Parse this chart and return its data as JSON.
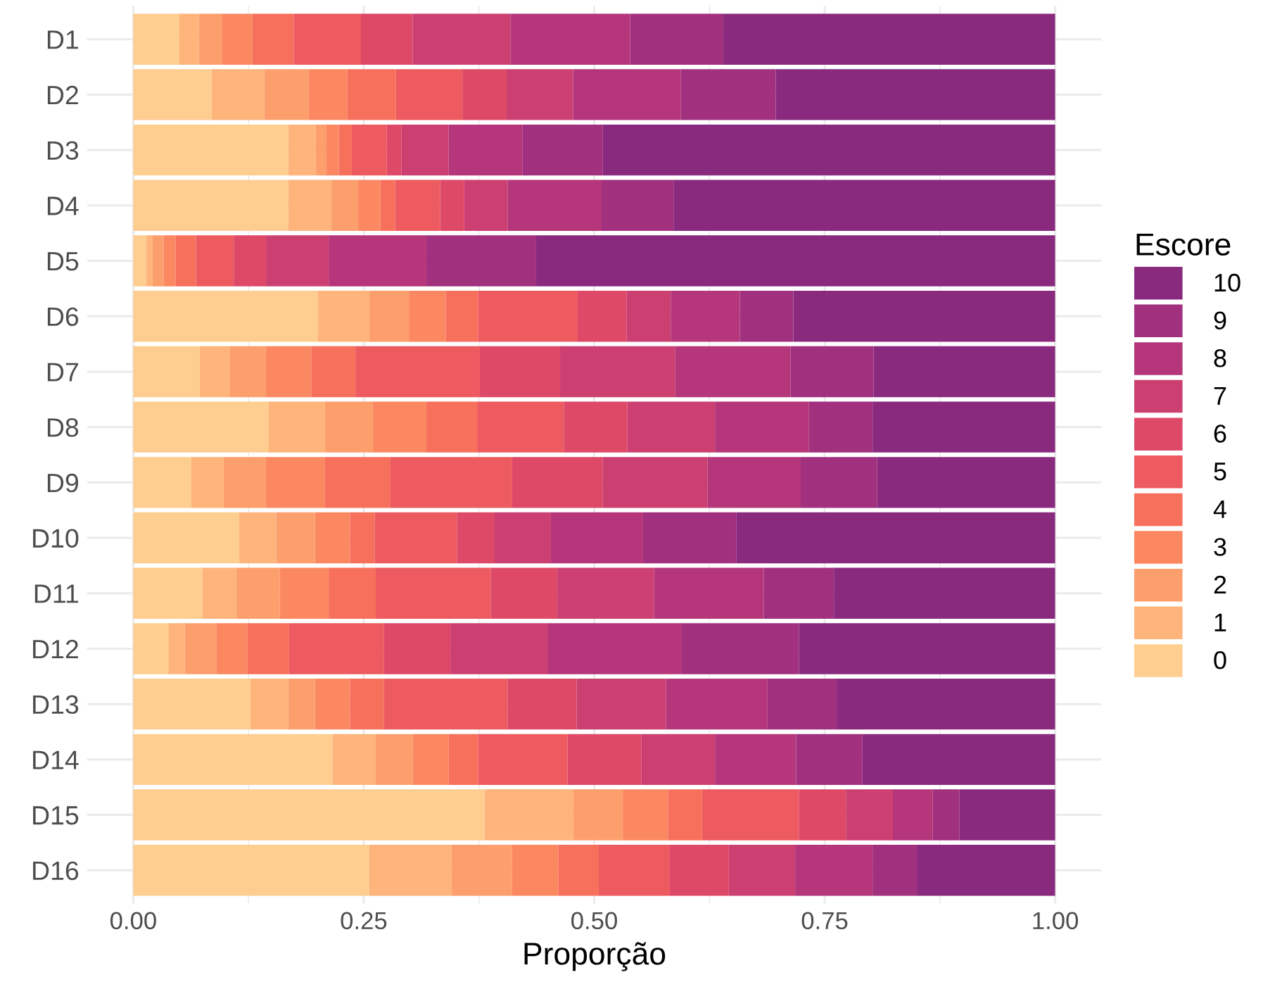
{
  "chart_data": {
    "type": "bar",
    "stacked": true,
    "orientation": "horizontal",
    "xlabel": "Proporção",
    "legend_title": "Escore",
    "legend": "right",
    "grid": true,
    "xlim": [
      -0.05,
      1.05
    ],
    "xticks": [
      {
        "value": 0,
        "label": "0.00"
      },
      {
        "value": 0.25,
        "label": "0.25"
      },
      {
        "value": 0.5,
        "label": "0.50"
      },
      {
        "value": 0.75,
        "label": "0.75"
      },
      {
        "value": 1,
        "label": "1.00"
      }
    ],
    "categories": [
      "D1",
      "D2",
      "D3",
      "D4",
      "D5",
      "D6",
      "D7",
      "D8",
      "D9",
      "D10",
      "D11",
      "D12",
      "D13",
      "D14",
      "D15",
      "D16"
    ],
    "series": [
      {
        "name": "0",
        "color": "#fecd90",
        "values": [
          0.05,
          0.085,
          0.168,
          0.168,
          0.014,
          0.2,
          0.072,
          0.147,
          0.063,
          0.115,
          0.075,
          0.038,
          0.127,
          0.216,
          0.381,
          0.256
        ]
      },
      {
        "name": "1",
        "color": "#feb47b",
        "values": [
          0.021,
          0.057,
          0.03,
          0.047,
          0.007,
          0.056,
          0.033,
          0.061,
          0.035,
          0.04,
          0.037,
          0.018,
          0.041,
          0.047,
          0.096,
          0.089
        ]
      },
      {
        "name": "2",
        "color": "#fd9f6c",
        "values": [
          0.025,
          0.048,
          0.011,
          0.029,
          0.012,
          0.043,
          0.039,
          0.052,
          0.046,
          0.042,
          0.047,
          0.034,
          0.029,
          0.04,
          0.054,
          0.066
        ]
      },
      {
        "name": "3",
        "color": "#fb8861",
        "values": [
          0.033,
          0.042,
          0.014,
          0.024,
          0.013,
          0.04,
          0.049,
          0.058,
          0.064,
          0.038,
          0.053,
          0.034,
          0.038,
          0.039,
          0.049,
          0.05
        ]
      },
      {
        "name": "4",
        "color": "#f7705c",
        "values": [
          0.045,
          0.053,
          0.014,
          0.016,
          0.022,
          0.035,
          0.048,
          0.055,
          0.071,
          0.027,
          0.051,
          0.045,
          0.037,
          0.032,
          0.037,
          0.044
        ]
      },
      {
        "name": "5",
        "color": "#ed5a5f",
        "values": [
          0.073,
          0.072,
          0.038,
          0.049,
          0.041,
          0.108,
          0.135,
          0.094,
          0.132,
          0.089,
          0.125,
          0.103,
          0.134,
          0.097,
          0.105,
          0.077
        ]
      },
      {
        "name": "6",
        "color": "#de4968",
        "values": [
          0.056,
          0.048,
          0.016,
          0.026,
          0.035,
          0.053,
          0.087,
          0.069,
          0.098,
          0.041,
          0.072,
          0.072,
          0.075,
          0.08,
          0.051,
          0.064
        ]
      },
      {
        "name": "7",
        "color": "#cc3f71",
        "values": [
          0.106,
          0.072,
          0.051,
          0.047,
          0.068,
          0.048,
          0.125,
          0.095,
          0.114,
          0.061,
          0.105,
          0.106,
          0.097,
          0.08,
          0.051,
          0.072
        ]
      },
      {
        "name": "8",
        "color": "#b5367a",
        "values": [
          0.13,
          0.117,
          0.08,
          0.102,
          0.106,
          0.075,
          0.125,
          0.102,
          0.101,
          0.1,
          0.119,
          0.145,
          0.11,
          0.088,
          0.043,
          0.084
        ]
      },
      {
        "name": "9",
        "color": "#a1307e",
        "values": [
          0.101,
          0.103,
          0.087,
          0.078,
          0.119,
          0.058,
          0.09,
          0.069,
          0.083,
          0.101,
          0.076,
          0.127,
          0.075,
          0.072,
          0.029,
          0.048
        ]
      },
      {
        "name": "10",
        "color": "#8a2a7e",
        "values": [
          0.36,
          0.303,
          0.491,
          0.414,
          0.563,
          0.284,
          0.197,
          0.198,
          0.193,
          0.346,
          0.24,
          0.278,
          0.237,
          0.209,
          0.104,
          0.15
        ]
      }
    ]
  }
}
